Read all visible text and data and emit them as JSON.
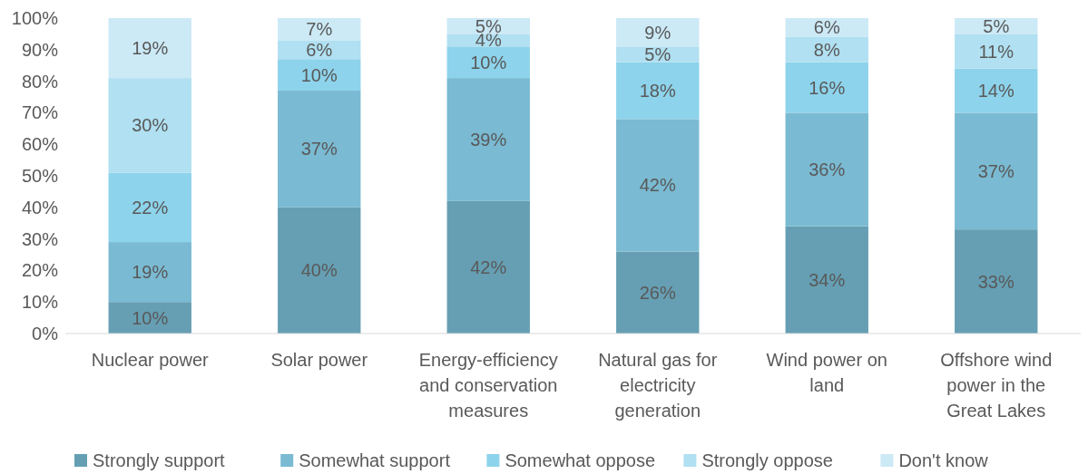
{
  "chart_data": {
    "type": "bar",
    "stacked": true,
    "categories": [
      "Nuclear power",
      "Solar power",
      "Energy-efficiency and conservation measures",
      "Natural gas for electricity generation",
      "Wind power on land",
      "Offshore wind power in the Great Lakes"
    ],
    "series": [
      {
        "name": "Strongly support",
        "color": "#669fb3",
        "values": [
          10,
          40,
          42,
          26,
          34,
          33
        ],
        "value_labels": [
          "10%",
          "40%",
          "42%",
          "26%",
          "34%",
          "33%"
        ]
      },
      {
        "name": "Somewhat support",
        "color": "#7abad2",
        "values": [
          19,
          37,
          39,
          42,
          36,
          37
        ],
        "value_labels": [
          "19%",
          "37%",
          "39%",
          "42%",
          "36%",
          "37%"
        ]
      },
      {
        "name": "Somewhat oppose",
        "color": "#8dd3eb",
        "values": [
          22,
          10,
          10,
          18,
          16,
          14
        ],
        "value_labels": [
          "22%",
          "10%",
          "10%",
          "18%",
          "16%",
          "14%"
        ]
      },
      {
        "name": "Strongly oppose",
        "color": "#b0e0f1",
        "values": [
          30,
          6,
          4,
          5,
          8,
          11
        ],
        "value_labels": [
          "30%",
          "6%",
          "4%",
          "5%",
          "8%",
          "11%"
        ]
      },
      {
        "name": "Don't know",
        "color": "#cce9f6",
        "values": [
          19,
          7,
          5,
          9,
          6,
          5
        ],
        "value_labels": [
          "19%",
          "7%",
          "5%",
          "9%",
          "6%",
          "5%"
        ]
      }
    ],
    "ylim": [
      0,
      100
    ],
    "yticks": [
      {
        "value": 0,
        "label": "0%"
      },
      {
        "value": 10,
        "label": "10%"
      },
      {
        "value": 20,
        "label": "20%"
      },
      {
        "value": 30,
        "label": "30%"
      },
      {
        "value": 40,
        "label": "40%"
      },
      {
        "value": 50,
        "label": "50%"
      },
      {
        "value": 60,
        "label": "60%"
      },
      {
        "value": 70,
        "label": "70%"
      },
      {
        "value": 80,
        "label": "80%"
      },
      {
        "value": 90,
        "label": "90%"
      },
      {
        "value": 100,
        "label": "100%"
      }
    ],
    "legend": "bottom",
    "grid": false
  }
}
